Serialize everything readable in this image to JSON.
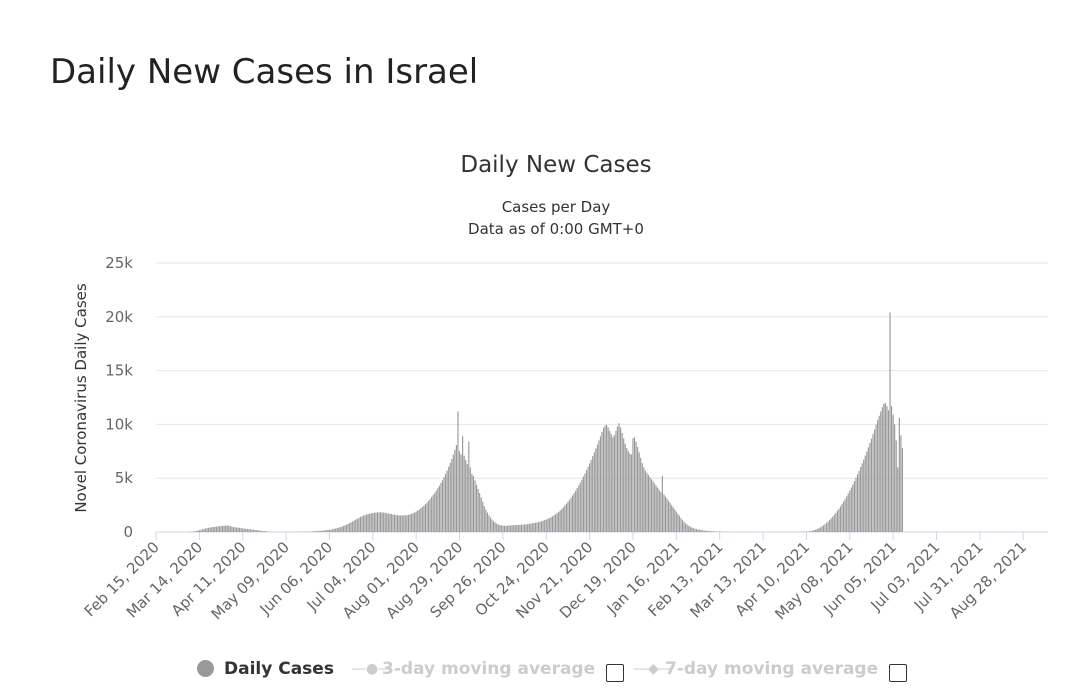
{
  "page": {
    "title": "Daily New Cases in Israel"
  },
  "chart_data": {
    "type": "bar",
    "title": "Daily New Cases",
    "subtitle_line1": "Cases per Day",
    "subtitle_line2": "Data as of 0:00 GMT+0",
    "ylabel": "Novel Coronavirus Daily Cases",
    "xlabel": "",
    "ylim": [
      0,
      25000
    ],
    "y_ticks": [
      {
        "value": 0,
        "label": "0"
      },
      {
        "value": 5000,
        "label": "5k"
      },
      {
        "value": 10000,
        "label": "10k"
      },
      {
        "value": 15000,
        "label": "15k"
      },
      {
        "value": 20000,
        "label": "20k"
      },
      {
        "value": 25000,
        "label": "25k"
      }
    ],
    "x_range": [
      "2020-02-15",
      "2021-09-13"
    ],
    "x_ticks": [
      {
        "date": "2020-02-15",
        "label": "Feb 15, 2020"
      },
      {
        "date": "2020-03-14",
        "label": "Mar 14, 2020"
      },
      {
        "date": "2020-04-11",
        "label": "Apr 11, 2020"
      },
      {
        "date": "2020-05-09",
        "label": "May 09, 2020"
      },
      {
        "date": "2020-06-06",
        "label": "Jun 06, 2020"
      },
      {
        "date": "2020-07-04",
        "label": "Jul 04, 2020"
      },
      {
        "date": "2020-08-01",
        "label": "Aug 01, 2020"
      },
      {
        "date": "2020-08-29",
        "label": "Aug 29, 2020"
      },
      {
        "date": "2020-09-26",
        "label": "Sep 26, 2020"
      },
      {
        "date": "2020-10-24",
        "label": "Oct 24, 2020"
      },
      {
        "date": "2020-11-21",
        "label": "Nov 21, 2020"
      },
      {
        "date": "2020-12-19",
        "label": "Dec 19, 2020"
      },
      {
        "date": "2021-01-16",
        "label": "Jan 16, 2021"
      },
      {
        "date": "2021-02-13",
        "label": "Feb 13, 2021"
      },
      {
        "date": "2021-03-13",
        "label": "Mar 13, 2021"
      },
      {
        "date": "2021-04-10",
        "label": "Apr 10, 2021"
      },
      {
        "date": "2021-05-08",
        "label": "May 08, 2021"
      },
      {
        "date": "2021-06-05",
        "label": "Jun 05, 2021"
      },
      {
        "date": "2021-07-03",
        "label": "Jul 03, 2021"
      },
      {
        "date": "2021-07-31",
        "label": "Jul 31, 2021"
      },
      {
        "date": "2021-08-28",
        "label": "Aug 28, 2021"
      }
    ],
    "grid": true,
    "legend_position": "bottom-center",
    "series": [
      {
        "name": "Daily Cases",
        "color": "#999999",
        "values_note_free": true,
        "x_start": "2020-02-15",
        "values": [
          0,
          0,
          0,
          0,
          0,
          0,
          0,
          0,
          0,
          0,
          0,
          0,
          0,
          0,
          0,
          0,
          0,
          0,
          0,
          0,
          10,
          15,
          20,
          30,
          40,
          60,
          90,
          130,
          160,
          200,
          250,
          300,
          330,
          360,
          390,
          420,
          440,
          460,
          480,
          500,
          520,
          540,
          560,
          560,
          580,
          600,
          610,
          590,
          540,
          500,
          460,
          440,
          420,
          400,
          380,
          360,
          340,
          320,
          300,
          290,
          270,
          250,
          230,
          210,
          190,
          170,
          150,
          130,
          110,
          95,
          80,
          60,
          40,
          25,
          15,
          10,
          10,
          10,
          10,
          10,
          10,
          10,
          10,
          10,
          10,
          10,
          10,
          10,
          10,
          15,
          15,
          20,
          20,
          25,
          25,
          30,
          30,
          35,
          40,
          40,
          50,
          60,
          70,
          80,
          90,
          100,
          110,
          120,
          130,
          150,
          170,
          190,
          210,
          230,
          260,
          290,
          320,
          360,
          400,
          450,
          500,
          560,
          620,
          690,
          760,
          830,
          910,
          990,
          1070,
          1150,
          1230,
          1310,
          1390,
          1460,
          1520,
          1580,
          1630,
          1670,
          1710,
          1740,
          1770,
          1790,
          1810,
          1820,
          1830,
          1830,
          1820,
          1800,
          1780,
          1750,
          1720,
          1690,
          1660,
          1630,
          1600,
          1580,
          1560,
          1550,
          1540,
          1540,
          1540,
          1550,
          1570,
          1600,
          1640,
          1690,
          1750,
          1820,
          1900,
          1990,
          2090,
          2200,
          2320,
          2450,
          2590,
          2740,
          2900,
          3070,
          3250,
          3440,
          3640,
          3850,
          4070,
          4300,
          4550,
          4820,
          5100,
          5400,
          5720,
          6060,
          6420,
          6800,
          7200,
          7630,
          8080,
          11200,
          7500,
          7200,
          8900,
          7100,
          6700,
          6300,
          8400,
          6000,
          5400,
          5200,
          4800,
          4400,
          4000,
          3600,
          3200,
          2800,
          2400,
          2100,
          1800,
          1550,
          1350,
          1150,
          1000,
          880,
          780,
          700,
          650,
          610,
          590,
          580,
          580,
          590,
          600,
          610,
          620,
          630,
          640,
          650,
          660,
          670,
          680,
          690,
          700,
          720,
          740,
          760,
          780,
          800,
          830,
          860,
          890,
          920,
          960,
          1000,
          1050,
          1100,
          1160,
          1220,
          1290,
          1370,
          1450,
          1540,
          1640,
          1750,
          1870,
          2000,
          2140,
          2290,
          2450,
          2620,
          2800,
          2990,
          3190,
          3400,
          3620,
          3850,
          4090,
          4340,
          4600,
          4870,
          5150,
          5440,
          5740,
          6050,
          6370,
          6700,
          7040,
          7390,
          7750,
          8120,
          8500,
          8890,
          9290,
          9700,
          9900,
          9950,
          9700,
          9400,
          9100,
          8800,
          9000,
          9400,
          9800,
          10100,
          9700,
          9200,
          8700,
          8200,
          7800,
          7500,
          7300,
          7200,
          8700,
          8800,
          8400,
          7900,
          7400,
          6900,
          6400,
          6000,
          5700,
          5500,
          5300,
          5100,
          4900,
          4700,
          4500,
          4300,
          4100,
          3900,
          3700,
          5200,
          3500,
          3300,
          3100,
          2900,
          2700,
          2500,
          2300,
          2100,
          1900,
          1700,
          1500,
          1300,
          1100,
          950,
          800,
          680,
          580,
          490,
          420,
          360,
          310,
          270,
          240,
          210,
          180,
          160,
          140,
          120,
          100,
          90,
          80,
          70,
          60,
          50,
          45,
          40,
          35,
          30,
          25,
          20,
          18,
          16,
          14,
          12,
          10,
          10,
          10,
          10,
          10,
          10,
          10,
          10,
          10,
          10,
          10,
          10,
          10,
          10,
          10,
          10,
          10,
          10,
          10,
          10,
          10,
          10,
          10,
          10,
          10,
          10,
          10,
          10,
          10,
          10,
          10,
          10,
          10,
          10,
          10,
          10,
          10,
          10,
          10,
          10,
          10,
          10,
          12,
          14,
          16,
          20,
          25,
          30,
          40,
          50,
          70,
          100,
          130,
          170,
          220,
          280,
          350,
          430,
          520,
          620,
          730,
          850,
          980,
          1120,
          1270,
          1430,
          1600,
          1780,
          1970,
          2170,
          2380,
          2600,
          2830,
          3070,
          3320,
          3580,
          3850,
          4130,
          4420,
          4720,
          5030,
          5350,
          5680,
          6020,
          6370,
          6730,
          7100,
          7480,
          7870,
          8270,
          8680,
          9100,
          9530,
          9970,
          10400,
          10800,
          11200,
          11600,
          11900,
          12000,
          11700,
          11300,
          20400,
          11700,
          10900,
          10000,
          8500,
          6000,
          10600,
          9000,
          7800
        ]
      }
    ]
  },
  "legend": {
    "daily_cases": "Daily Cases",
    "ma3": "3-day moving average",
    "ma7": "7-day moving average"
  },
  "colors": {
    "bars": "#999999",
    "grid": "#e6e6e6",
    "axis": "#ccd6eb"
  }
}
